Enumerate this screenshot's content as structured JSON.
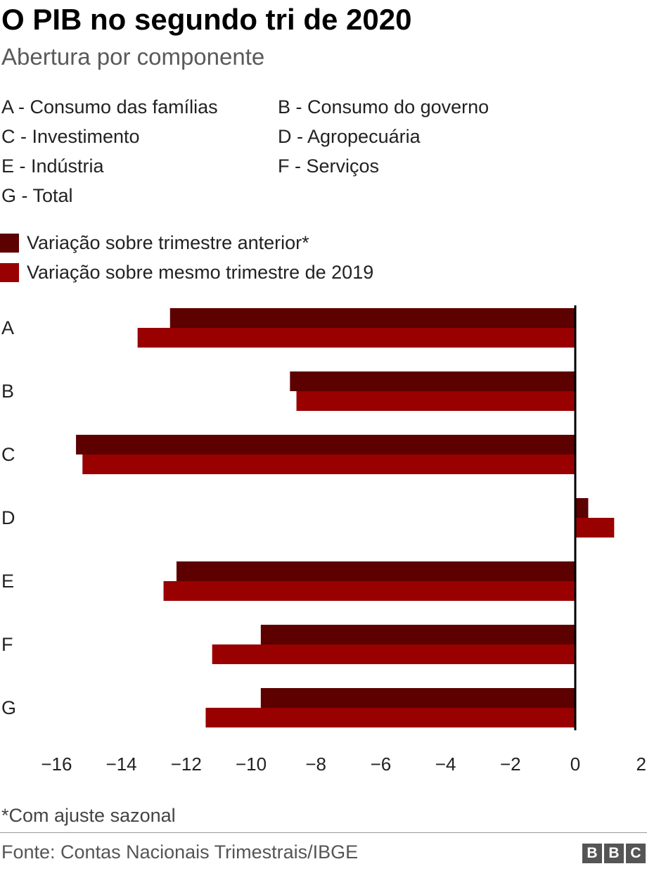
{
  "title": "O PIB no segundo tri de 2020",
  "subtitle": "Abertura por componente",
  "key": [
    "A - Consumo das famílias",
    "B - Consumo do governo",
    "C - Investimento",
    "D - Agropecuária",
    "E - Indústria",
    "F - Serviços",
    "G - Total"
  ],
  "colors": {
    "previous_quarter": "#5c0000",
    "same_quarter_2019": "#990000",
    "axis": "#000000"
  },
  "footnote": "*Com ajuste sazonal",
  "source": "Fonte: Contas Nacionais Trimestrais/IBGE",
  "logo": [
    "B",
    "B",
    "C"
  ],
  "chart_data": {
    "type": "bar",
    "orientation": "horizontal",
    "categories": [
      "A",
      "B",
      "C",
      "D",
      "E",
      "F",
      "G"
    ],
    "series": [
      {
        "name": "Variação sobre trimestre anterior*",
        "values": [
          -12.5,
          -8.8,
          -15.4,
          0.4,
          -12.3,
          -9.7,
          -9.7
        ]
      },
      {
        "name": "Variação sobre mesmo trimestre de 2019",
        "values": [
          -13.5,
          -8.6,
          -15.2,
          1.2,
          -12.7,
          -11.2,
          -11.4
        ]
      }
    ],
    "xticks": [
      -16,
      -14,
      -12,
      -10,
      -8,
      -6,
      -4,
      -2,
      0,
      2
    ],
    "xtick_labels": [
      "−16",
      "−14",
      "−12",
      "−10",
      "−8",
      "−6",
      "−4",
      "−2",
      "0",
      "2"
    ],
    "xlim": [
      -16.4,
      2
    ],
    "grid": false,
    "legend_position": "top-left"
  }
}
